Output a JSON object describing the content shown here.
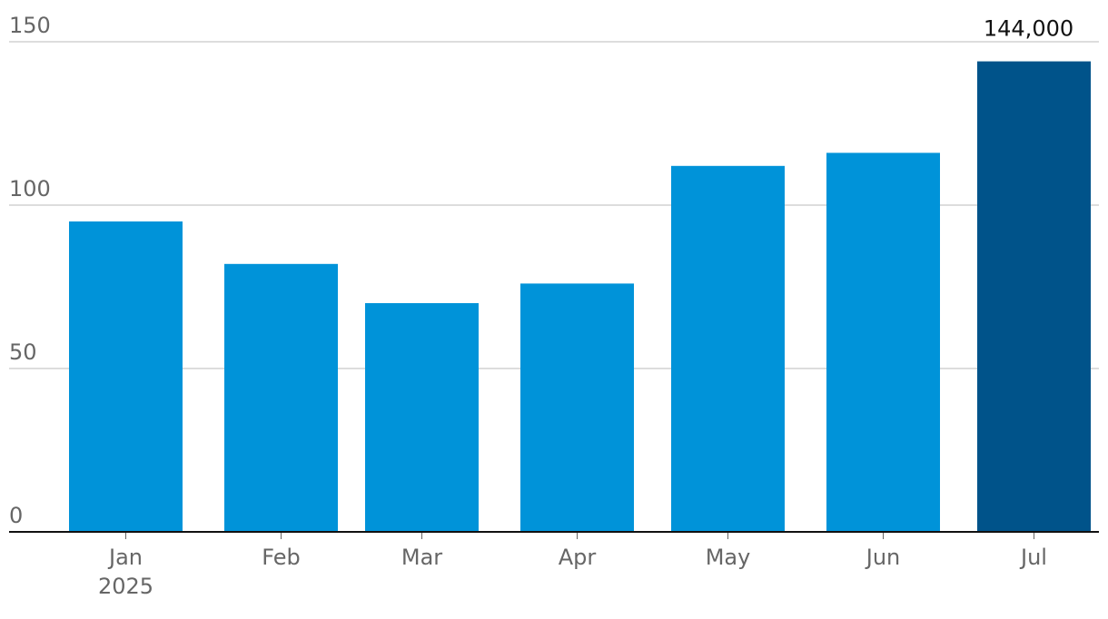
{
  "chart_data": {
    "type": "bar",
    "categories": [
      "Jan",
      "Feb",
      "Mar",
      "Apr",
      "May",
      "Jun",
      "Jul"
    ],
    "category_sublabels": [
      "2025",
      null,
      null,
      null,
      null,
      null,
      null
    ],
    "values": [
      95,
      82,
      70,
      76,
      112,
      116,
      144
    ],
    "value_labels": [
      null,
      null,
      null,
      null,
      null,
      null,
      "144,000"
    ],
    "colors": [
      "#0093d9",
      "#0093d9",
      "#0093d9",
      "#0093d9",
      "#0093d9",
      "#0093d9",
      "#00538a"
    ],
    "ylim": [
      0,
      150
    ],
    "yticks": [
      0,
      50,
      100,
      150
    ],
    "grid": true
  }
}
